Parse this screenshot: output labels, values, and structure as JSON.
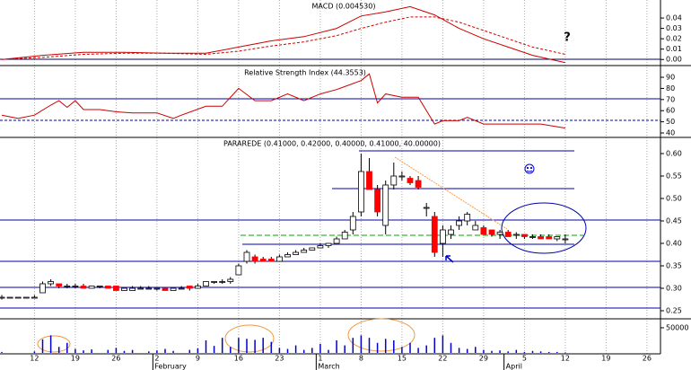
{
  "chart_data": [
    {
      "type": "line",
      "title": "MACD (0.004530)",
      "x": [
        0,
        5,
        10,
        15,
        20,
        25,
        29,
        33,
        37,
        41,
        44,
        47,
        50,
        53,
        56,
        59,
        62,
        65,
        69
      ],
      "series": [
        {
          "color": "#cc0000",
          "dashed": false,
          "values": [
            0.0,
            0.004,
            0.007,
            0.007,
            0.006,
            0.006,
            0.012,
            0.018,
            0.022,
            0.03,
            0.042,
            0.046,
            0.051,
            0.043,
            0.03,
            0.02,
            0.012,
            0.004,
            -0.003
          ]
        },
        {
          "color": "#cc0000",
          "dashed": true,
          "values": [
            0.0,
            0.002,
            0.005,
            0.006,
            0.006,
            0.005,
            0.008,
            0.013,
            0.017,
            0.023,
            0.03,
            0.036,
            0.041,
            0.041,
            0.036,
            0.028,
            0.02,
            0.012,
            0.005
          ]
        }
      ],
      "ylim": [
        -0.005,
        0.0574
      ],
      "yticks": [
        {
          "value": 0,
          "label": "0.00"
        },
        0.01,
        0.02,
        0.03,
        0.04
      ],
      "annotation": "?",
      "annotation_color": "#0000cc"
    },
    {
      "type": "line",
      "title": "Relative Strength Index (44.3553)",
      "x": [
        0,
        2,
        4,
        6,
        7,
        8,
        9,
        10,
        12,
        14,
        16,
        19,
        21,
        22,
        25,
        27,
        29,
        31,
        33,
        35,
        37,
        39,
        41,
        44,
        45,
        46,
        47,
        49,
        51,
        53,
        54,
        56,
        57,
        59,
        62,
        66,
        69
      ],
      "series": [
        {
          "color": "#cc0000",
          "dashed": false,
          "values": [
            56,
            53,
            56,
            65,
            69,
            63,
            69,
            61,
            61,
            59,
            58,
            58,
            53,
            56,
            64,
            64,
            80,
            69,
            69,
            75,
            69,
            75,
            79,
            87,
            93,
            67,
            75,
            72,
            72,
            48,
            51,
            51,
            54,
            48,
            48,
            48,
            44.3553
          ]
        }
      ],
      "ylim": [
        36.8,
        99.7
      ],
      "yticks": [
        40,
        50,
        60,
        70,
        80,
        90
      ]
    },
    {
      "type": "candlestick",
      "title": "PARAREDE (0.41000, 0.42000, 0.40000, 0.41000, 40.00000)",
      "ohlc": [
        [
          0.28,
          0.285,
          0.275,
          0.28
        ],
        [
          0.28,
          0.28,
          0.28,
          0.28
        ],
        [
          0.28,
          0.28,
          0.28,
          0.28
        ],
        [
          0.28,
          0.28,
          0.28,
          0.28
        ],
        [
          0.28,
          0.285,
          0.28,
          0.28
        ],
        [
          0.29,
          0.315,
          0.29,
          0.31
        ],
        [
          0.31,
          0.32,
          0.305,
          0.315
        ],
        [
          0.31,
          0.31,
          0.3,
          0.305
        ],
        [
          0.305,
          0.31,
          0.3,
          0.305
        ],
        [
          0.305,
          0.31,
          0.3,
          0.305
        ],
        [
          0.305,
          0.31,
          0.3,
          0.3
        ],
        [
          0.3,
          0.305,
          0.3,
          0.305
        ],
        [
          0.305,
          0.305,
          0.3,
          0.305
        ],
        [
          0.305,
          0.305,
          0.3,
          0.3
        ],
        [
          0.305,
          0.305,
          0.295,
          0.295
        ],
        [
          0.295,
          0.3,
          0.295,
          0.3
        ],
        [
          0.295,
          0.305,
          0.295,
          0.3
        ],
        [
          0.3,
          0.305,
          0.3,
          0.3
        ],
        [
          0.3,
          0.305,
          0.3,
          0.3
        ],
        [
          0.3,
          0.3,
          0.295,
          0.3
        ],
        [
          0.3,
          0.3,
          0.295,
          0.295
        ],
        [
          0.295,
          0.3,
          0.295,
          0.3
        ],
        [
          0.3,
          0.305,
          0.3,
          0.3
        ],
        [
          0.305,
          0.305,
          0.295,
          0.3
        ],
        [
          0.3,
          0.31,
          0.3,
          0.305
        ],
        [
          0.305,
          0.315,
          0.305,
          0.315
        ],
        [
          0.315,
          0.315,
          0.31,
          0.315
        ],
        [
          0.315,
          0.32,
          0.31,
          0.315
        ],
        [
          0.315,
          0.325,
          0.31,
          0.32
        ],
        [
          0.33,
          0.355,
          0.33,
          0.35
        ],
        [
          0.36,
          0.385,
          0.355,
          0.38
        ],
        [
          0.37,
          0.375,
          0.355,
          0.36
        ],
        [
          0.365,
          0.37,
          0.36,
          0.36
        ],
        [
          0.365,
          0.37,
          0.36,
          0.36
        ],
        [
          0.36,
          0.375,
          0.36,
          0.37
        ],
        [
          0.37,
          0.38,
          0.37,
          0.375
        ],
        [
          0.375,
          0.385,
          0.375,
          0.38
        ],
        [
          0.38,
          0.39,
          0.38,
          0.385
        ],
        [
          0.385,
          0.39,
          0.385,
          0.39
        ],
        [
          0.39,
          0.4,
          0.39,
          0.395
        ],
        [
          0.395,
          0.4,
          0.39,
          0.4
        ],
        [
          0.4,
          0.415,
          0.4,
          0.41
        ],
        [
          0.41,
          0.43,
          0.41,
          0.425
        ],
        [
          0.43,
          0.47,
          0.42,
          0.46
        ],
        [
          0.47,
          0.6,
          0.46,
          0.56
        ],
        [
          0.56,
          0.59,
          0.52,
          0.52
        ],
        [
          0.52,
          0.53,
          0.46,
          0.47
        ],
        [
          0.44,
          0.54,
          0.42,
          0.53
        ],
        [
          0.53,
          0.58,
          0.52,
          0.55
        ],
        [
          0.55,
          0.56,
          0.54,
          0.55
        ],
        [
          0.545,
          0.55,
          0.53,
          0.535
        ],
        [
          0.54,
          0.55,
          0.52,
          0.525
        ],
        [
          0.48,
          0.49,
          0.46,
          0.48
        ],
        [
          0.46,
          0.47,
          0.37,
          0.38
        ],
        [
          0.4,
          0.44,
          0.37,
          0.43
        ],
        [
          0.42,
          0.44,
          0.41,
          0.43
        ],
        [
          0.44,
          0.46,
          0.43,
          0.45
        ],
        [
          0.45,
          0.47,
          0.44,
          0.465
        ],
        [
          0.43,
          0.45,
          0.43,
          0.44
        ],
        [
          0.435,
          0.44,
          0.42,
          0.42
        ],
        [
          0.43,
          0.43,
          0.415,
          0.42
        ],
        [
          0.42,
          0.43,
          0.41,
          0.425
        ],
        [
          0.425,
          0.43,
          0.415,
          0.415
        ],
        [
          0.42,
          0.425,
          0.41,
          0.42
        ],
        [
          0.42,
          0.42,
          0.41,
          0.415
        ],
        [
          0.415,
          0.42,
          0.41,
          0.415
        ],
        [
          0.415,
          0.42,
          0.41,
          0.41
        ],
        [
          0.415,
          0.42,
          0.41,
          0.41
        ],
        [
          0.41,
          0.415,
          0.405,
          0.415
        ],
        [
          0.41,
          0.42,
          0.4,
          0.41
        ]
      ],
      "up_color": "#ffffff",
      "down_color": "#ff0000",
      "ylim": [
        0.232,
        0.636
      ],
      "yticks": [
        0.25,
        {
          "value": 0.3,
          "label": "0.30"
        },
        0.35,
        {
          "value": 0.4,
          "label": "0.40"
        },
        0.45,
        {
          "value": 0.5,
          "label": "0.50"
        },
        0.55,
        {
          "value": 0.6,
          "label": "0.60"
        }
      ]
    },
    {
      "type": "bar",
      "color": "#0000cc",
      "values": [
        2000,
        0,
        0,
        0,
        3000,
        27000,
        35000,
        12000,
        20000,
        8000,
        5000,
        7000,
        0,
        6000,
        10000,
        4000,
        6000,
        0,
        3000,
        5000,
        8000,
        4000,
        0,
        6000,
        9000,
        25000,
        14000,
        30000,
        12000,
        30000,
        28000,
        26000,
        30000,
        22000,
        10000,
        8000,
        15000,
        6000,
        10000,
        18000,
        6000,
        25000,
        15000,
        30000,
        35000,
        30000,
        20000,
        28000,
        25000,
        12000,
        20000,
        10000,
        15000,
        30000,
        35000,
        20000,
        10000,
        8000,
        12000,
        6000,
        4000,
        5000,
        3000,
        6000,
        2000,
        4000,
        3000,
        2000,
        2000,
        1000
      ],
      "ylim": [
        0,
        66000
      ],
      "yticks": [
        50000
      ],
      "xlim": [
        0,
        80
      ],
      "xticks": [
        {
          "value": 4,
          "label": "12"
        },
        {
          "value": 9,
          "label": "19"
        },
        {
          "value": 14,
          "label": "26"
        },
        {
          "value": 19,
          "label": "2"
        },
        {
          "value": 24,
          "label": "9"
        },
        {
          "value": 29,
          "label": "16"
        },
        {
          "value": 34,
          "label": "23"
        },
        {
          "value": 39,
          "label": "1"
        },
        {
          "value": 44,
          "label": "8"
        },
        {
          "value": 49,
          "label": "15"
        },
        {
          "value": 54,
          "label": "22"
        },
        {
          "value": 59,
          "label": "29"
        },
        {
          "value": 64,
          "label": "5"
        },
        {
          "value": 69,
          "label": "12"
        },
        {
          "value": 74,
          "label": "19"
        },
        {
          "value": 79,
          "label": "26"
        }
      ],
      "months": [
        {
          "value": 18.5,
          "label": "February"
        },
        {
          "value": 38.5,
          "label": "March"
        },
        {
          "value": 61.5,
          "label": "April"
        }
      ]
    }
  ]
}
